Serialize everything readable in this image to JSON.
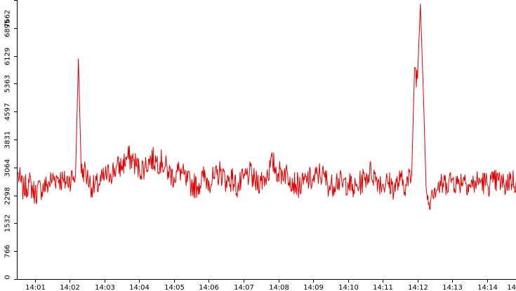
{
  "chart_data": {
    "type": "line",
    "title": "",
    "xlabel": "",
    "ylabel": "",
    "grid": false,
    "legend": "none",
    "ylim": [
      0,
      7662
    ],
    "xlim": [
      "14:00:30",
      "14:14:50"
    ],
    "y_ticks": [
      "0",
      "766",
      "1532",
      "2298",
      "3064",
      "3831",
      "4597",
      "5363",
      "6129",
      "6895",
      "7662"
    ],
    "x_ticks": [
      "14:01",
      "14:02",
      "14:03",
      "14:04",
      "14:05",
      "14:06",
      "14:07",
      "14:08",
      "14:09",
      "14:10",
      "14:11",
      "14:12",
      "14:13",
      "14:14",
      "14"
    ],
    "series": [
      {
        "color": "#e00000",
        "x": [
          "14:00:30",
          "14:00:40",
          "14:00:50",
          "14:01:00",
          "14:01:10",
          "14:01:20",
          "14:01:30",
          "14:01:40",
          "14:01:50",
          "14:02:00",
          "14:02:10",
          "14:02:15",
          "14:02:20",
          "14:02:25",
          "14:02:30",
          "14:02:40",
          "14:02:50",
          "14:03:00",
          "14:03:10",
          "14:03:20",
          "14:03:30",
          "14:03:40",
          "14:03:50",
          "14:04:00",
          "14:04:10",
          "14:04:20",
          "14:04:30",
          "14:04:40",
          "14:04:50",
          "14:05:00",
          "14:05:10",
          "14:05:20",
          "14:05:30",
          "14:05:40",
          "14:05:50",
          "14:06:00",
          "14:06:10",
          "14:06:20",
          "14:06:30",
          "14:06:40",
          "14:06:50",
          "14:07:00",
          "14:07:10",
          "14:07:20",
          "14:07:30",
          "14:07:40",
          "14:07:50",
          "14:08:00",
          "14:08:10",
          "14:08:20",
          "14:08:30",
          "14:08:40",
          "14:08:50",
          "14:09:00",
          "14:09:10",
          "14:09:20",
          "14:09:30",
          "14:09:40",
          "14:09:50",
          "14:10:00",
          "14:10:10",
          "14:10:20",
          "14:10:30",
          "14:10:40",
          "14:10:50",
          "14:11:00",
          "14:11:10",
          "14:11:20",
          "14:11:30",
          "14:11:40",
          "14:11:50",
          "14:11:55",
          "14:12:00",
          "14:12:05",
          "14:12:10",
          "14:12:15",
          "14:12:20",
          "14:12:25",
          "14:12:30",
          "14:12:40",
          "14:12:50",
          "14:13:00",
          "14:13:10",
          "14:13:20",
          "14:13:30",
          "14:13:40",
          "14:13:50",
          "14:14:00",
          "14:14:10",
          "14:14:20",
          "14:14:30",
          "14:14:40",
          "14:14:50"
        ],
        "values": [
          2900,
          2450,
          2650,
          2350,
          2500,
          2550,
          2750,
          2800,
          2650,
          2750,
          2850,
          6050,
          2900,
          3000,
          2800,
          2500,
          2600,
          2800,
          2900,
          3050,
          3100,
          3350,
          3250,
          3000,
          3100,
          3300,
          3250,
          3200,
          2950,
          2800,
          3000,
          2700,
          2600,
          2550,
          2800,
          2700,
          2750,
          2950,
          2700,
          2750,
          2500,
          2750,
          2900,
          2650,
          2700,
          2850,
          3200,
          2900,
          2950,
          2800,
          2600,
          2550,
          2750,
          2700,
          2900,
          2800,
          2500,
          2750,
          2600,
          2650,
          2450,
          2600,
          2800,
          2950,
          2750,
          2600,
          2650,
          2500,
          2700,
          2600,
          2850,
          5800,
          5500,
          7550,
          5200,
          2500,
          2100,
          2450,
          2500,
          2550,
          2650,
          2750,
          2600,
          2800,
          2550,
          2650,
          2700,
          2600,
          2650,
          2700,
          2550,
          2750,
          2650
        ]
      }
    ]
  }
}
